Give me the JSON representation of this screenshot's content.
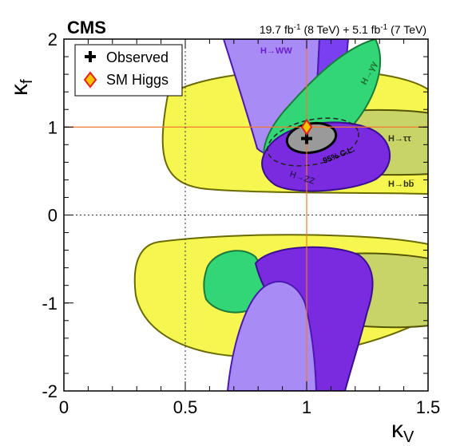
{
  "chart_data": {
    "type": "contour",
    "experiment": "CMS",
    "luminosity": {
      "part1": "19.7 fb",
      "exp1": "-1",
      "part2": " (8 TeV) + 5.1 fb",
      "exp2": "-1",
      "part3": " (7 TeV)"
    },
    "xlabel": {
      "main": "κ",
      "sub": "V"
    },
    "ylabel": {
      "main": "κ",
      "sub": "f"
    },
    "xlim": [
      0,
      1.5
    ],
    "ylim": [
      -2,
      2
    ],
    "x_ticks": [
      {
        "value": 0,
        "label": "0"
      },
      {
        "value": 0.5,
        "label": "0.5"
      },
      {
        "value": 1,
        "label": "1"
      },
      {
        "value": 1.5,
        "label": "1.5"
      }
    ],
    "y_ticks": [
      {
        "value": -2,
        "label": "-2"
      },
      {
        "value": -1,
        "label": "-1"
      },
      {
        "value": 0,
        "label": "0"
      },
      {
        "value": 1,
        "label": "1"
      },
      {
        "value": 2,
        "label": "2"
      }
    ],
    "legend": {
      "position": "top-left",
      "entries": [
        {
          "label": "Observed",
          "marker": "cross"
        },
        {
          "label": "SM Higgs",
          "marker": "diamond"
        }
      ]
    },
    "observed_best_fit": {
      "x": 1.0,
      "y": 0.87
    },
    "sm_point": {
      "x": 1.0,
      "y": 1.0
    },
    "channel_labels": [
      {
        "text": "H→WW",
        "color": "#6a1fd0"
      },
      {
        "text": "H→γγ",
        "color": "#1f6e2b"
      },
      {
        "text": "H→ττ",
        "color": "#333300"
      },
      {
        "text": "H→bb̅",
        "color": "#333300"
      },
      {
        "text": "H→ZZ",
        "color": "#3a1470"
      }
    ],
    "combined_label": "95% C.L.",
    "colors": {
      "bb": "#f6f650",
      "tautau": "#c8d468",
      "ww": "#7b3ff2",
      "ww_light": "#a98bf5",
      "gg": "#32d676",
      "zz": "#7a2be0",
      "combined": "#9a9a9a",
      "sm_line": "#f07830",
      "sm_marker_fill": "#f6c400",
      "sm_marker_edge": "#e8201a"
    }
  }
}
